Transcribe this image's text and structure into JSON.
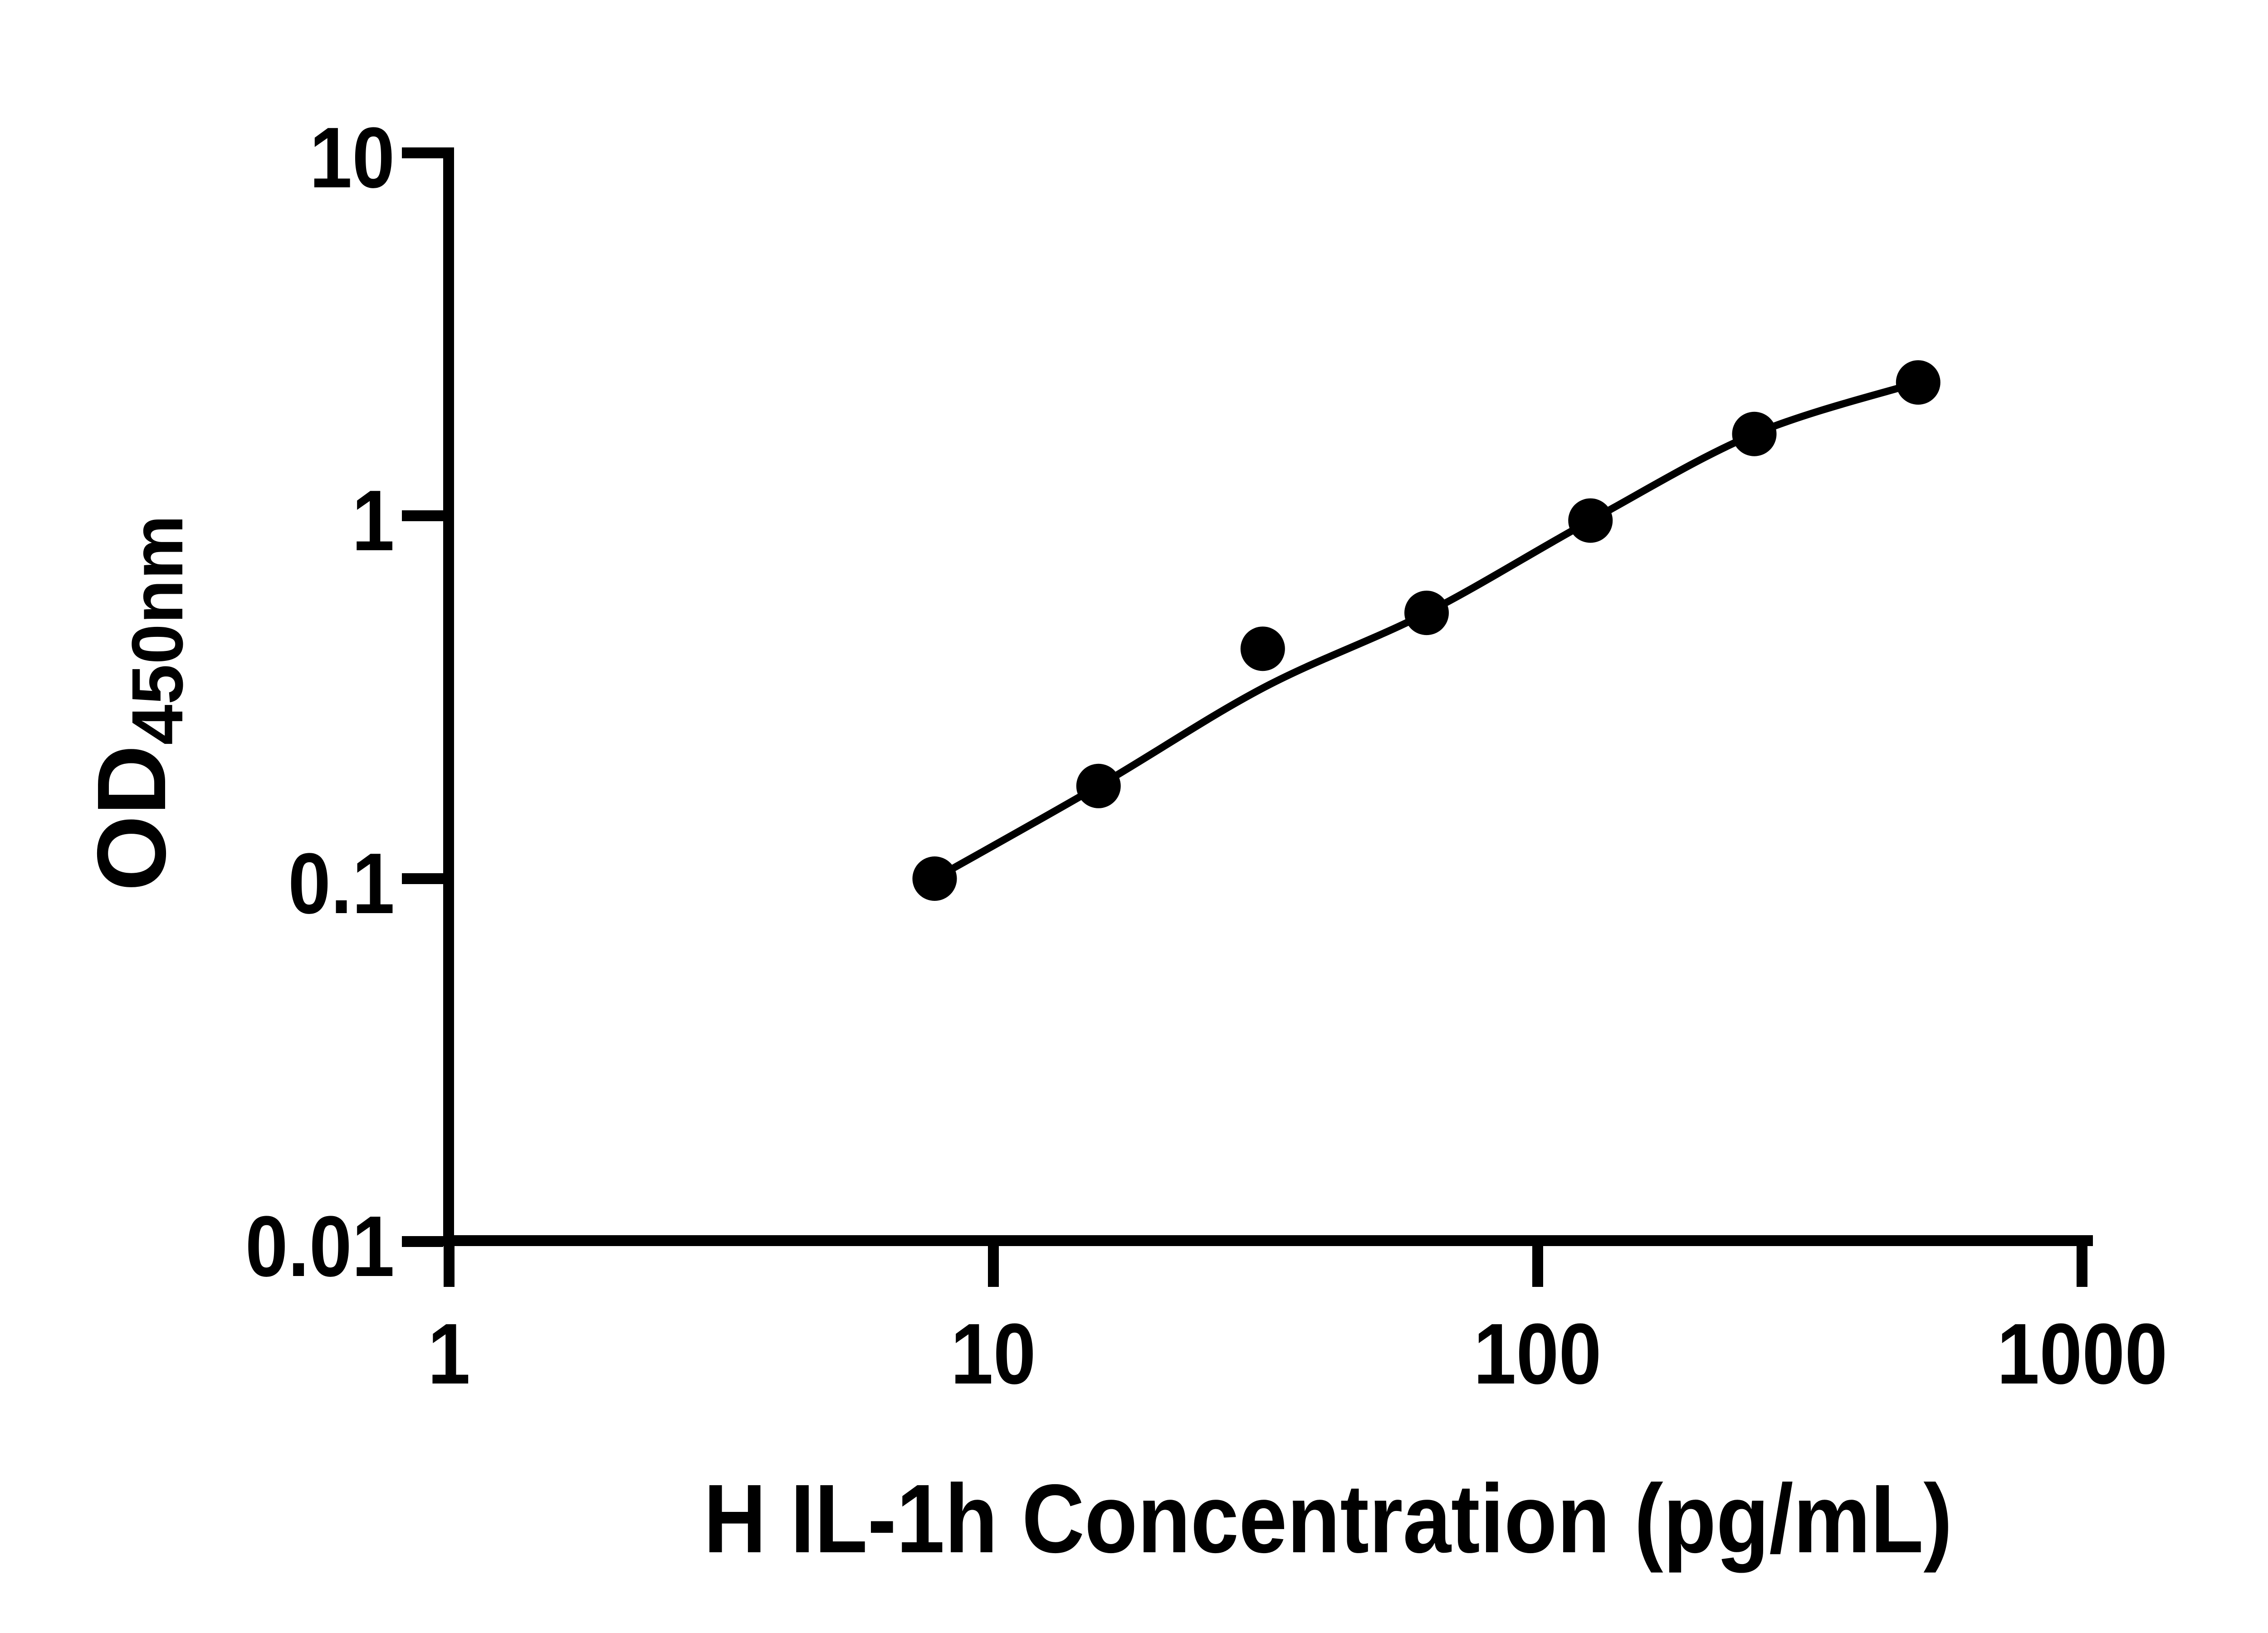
{
  "figure": {
    "background": "#ffffff",
    "ink": "#000000"
  },
  "axes": {
    "x_label": "H IL-1h Concentration (pg/mL)",
    "y_label_main": "OD",
    "y_label_sub": "450nm",
    "x_scale": "log",
    "y_scale": "log",
    "x_ticks": [
      {
        "value": 1,
        "label": "1"
      },
      {
        "value": 10,
        "label": "10"
      },
      {
        "value": 100,
        "label": "100"
      },
      {
        "value": 1000,
        "label": "1000"
      }
    ],
    "y_ticks": [
      {
        "value": 10,
        "label": "10"
      },
      {
        "value": 1,
        "label": "1"
      },
      {
        "value": 0.1,
        "label": "0.1"
      },
      {
        "value": 0.01,
        "label": "0.01"
      }
    ]
  },
  "chart_data": {
    "type": "scatter",
    "title": "",
    "xlabel": "H IL-1h Concentration (pg/mL)",
    "ylabel": "OD450nm",
    "x_scale": "log",
    "y_scale": "log",
    "xlim": [
      1,
      1000
    ],
    "ylim": [
      0.01,
      10
    ],
    "grid": false,
    "legend": "none",
    "marker": {
      "shape": "circle",
      "color": "#000000"
    },
    "points": [
      {
        "concentration": 7.8,
        "od": 0.1
      },
      {
        "concentration": 15.6,
        "od": 0.18
      },
      {
        "concentration": 31.25,
        "od": 0.43
      },
      {
        "concentration": 62.5,
        "od": 0.54
      },
      {
        "concentration": 125,
        "od": 0.97
      },
      {
        "concentration": 250,
        "od": 1.68
      },
      {
        "concentration": 500,
        "od": 2.33
      }
    ],
    "fit_curve_od": [
      0.1,
      0.18,
      0.335,
      0.54,
      0.97,
      1.68,
      2.33
    ]
  }
}
